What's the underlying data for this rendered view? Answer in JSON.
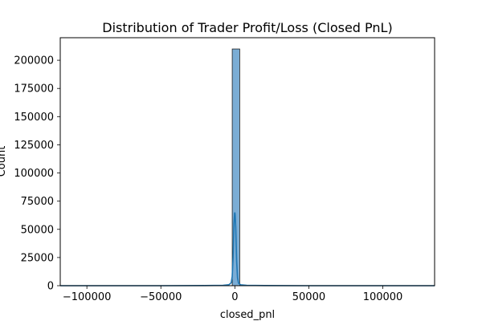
{
  "chart_data": {
    "type": "bar",
    "subtype": "histogram-with-kde",
    "title": "Distribution of Trader Profit/Loss (Closed PnL)",
    "xlabel": "closed_pnl",
    "ylabel": "Count",
    "xlim": [
      -118000,
      135000
    ],
    "ylim": [
      0,
      220000
    ],
    "x_ticks": [
      -100000,
      -50000,
      0,
      50000,
      100000
    ],
    "x_tick_labels": [
      "−100000",
      "−50000",
      "0",
      "50000",
      "100000"
    ],
    "y_ticks": [
      0,
      25000,
      50000,
      75000,
      100000,
      125000,
      150000,
      175000,
      200000
    ],
    "y_tick_labels": [
      "0",
      "25000",
      "50000",
      "75000",
      "100000",
      "125000",
      "150000",
      "175000",
      "200000"
    ],
    "bins": [
      {
        "x0": -117990,
        "x1": -112930,
        "count": 0
      },
      {
        "x0": -1770,
        "x1": 3290,
        "count": 210000
      }
    ],
    "kde": {
      "x": [
        -117990,
        -50000,
        -20000,
        -8000,
        -4000,
        -2500,
        -1800,
        -1200,
        -600,
        -200,
        0,
        200,
        600,
        1200,
        1800,
        2500,
        4000,
        8000,
        20000,
        50000,
        100000,
        134980
      ],
      "y": [
        0,
        0,
        100,
        300,
        900,
        2500,
        8000,
        25000,
        55000,
        64000,
        65000,
        63000,
        52000,
        22000,
        7000,
        2200,
        800,
        300,
        100,
        0,
        0,
        0
      ]
    },
    "grid": false,
    "legend": "none",
    "colors": {
      "bar_fill": "#7badd5",
      "bar_edge": "#1f1f1f",
      "kde_line": "#1f77b4",
      "axis": "#000000"
    }
  }
}
